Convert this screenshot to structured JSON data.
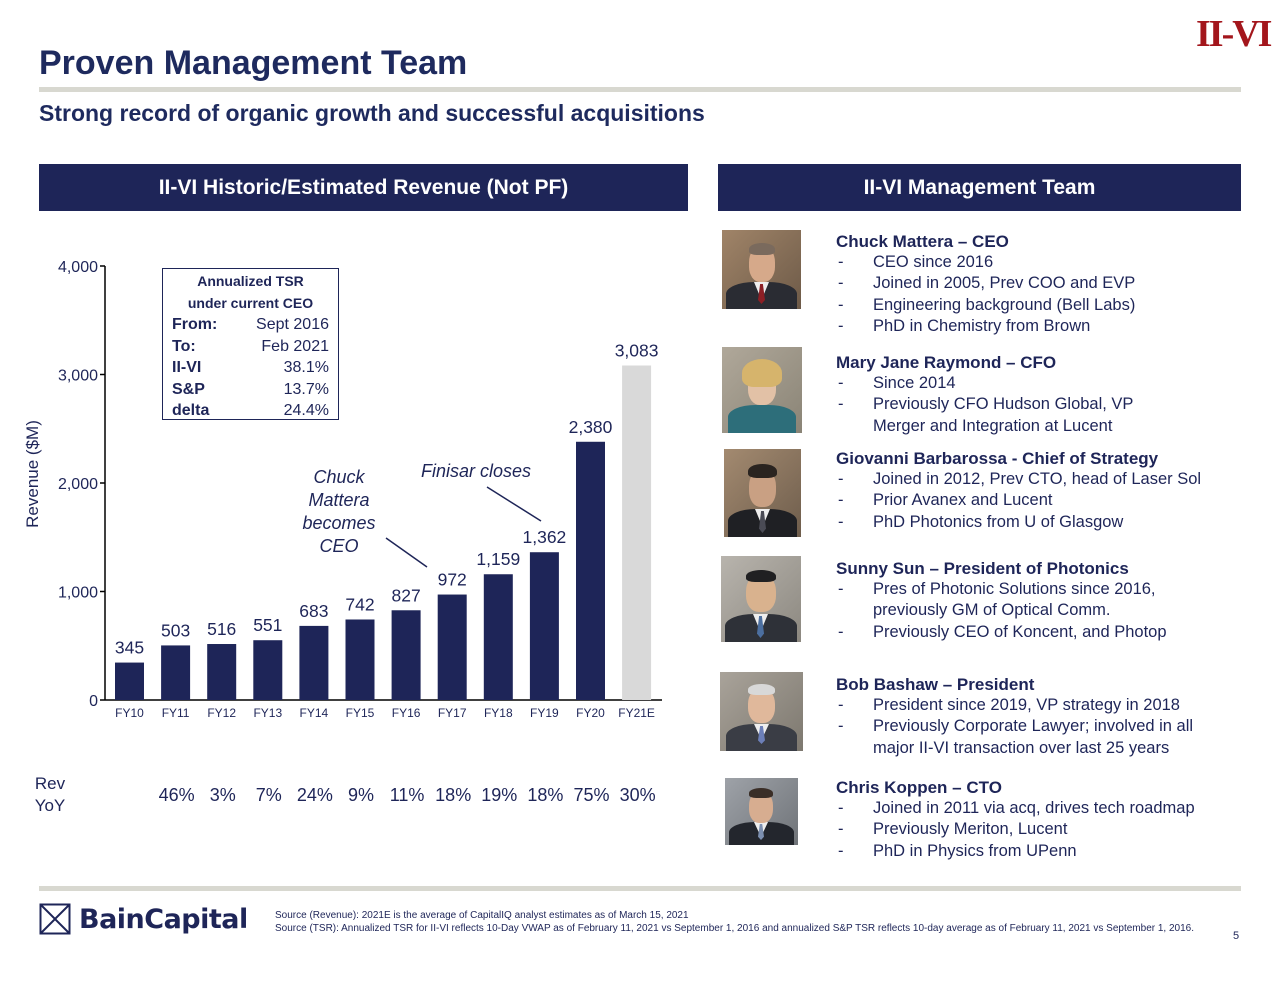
{
  "header": {
    "title": "Proven Management Team",
    "logo_text": "II-VI",
    "subtitle": "Strong record of organic growth and successful acquisitions"
  },
  "chart_panel": {
    "banner": "II-VI Historic/Estimated Revenue (Not PF)"
  },
  "team_panel": {
    "banner": "II-VI Management Team"
  },
  "tsr_box": {
    "heading_line1": "Annualized TSR",
    "heading_line2": "under current CEO",
    "rows": [
      {
        "label": "From:",
        "value": "Sept 2016"
      },
      {
        "label": "To:",
        "value": "Feb 2021"
      },
      {
        "label": "II-VI",
        "value": "38.1%"
      },
      {
        "label": "S&P",
        "value": "13.7%"
      },
      {
        "label": "delta",
        "value": "24.4%"
      }
    ]
  },
  "chart_data": {
    "type": "bar",
    "ylabel": "Revenue ($M)",
    "ylim": [
      0,
      4000
    ],
    "yticks": [
      0,
      1000,
      2000,
      3000,
      4000
    ],
    "ytick_labels": [
      "0",
      "1,000",
      "2,000",
      "3,000",
      "4,000"
    ],
    "categories": [
      "FY10",
      "FY11",
      "FY12",
      "FY13",
      "FY14",
      "FY15",
      "FY16",
      "FY17",
      "FY18",
      "FY19",
      "FY20",
      "FY21E"
    ],
    "values": [
      345,
      503,
      516,
      551,
      683,
      742,
      827,
      972,
      1159,
      1362,
      2380,
      3083
    ],
    "value_labels": [
      "345",
      "503",
      "516",
      "551",
      "683",
      "742",
      "827",
      "972",
      "1,159",
      "1,362",
      "2,380",
      "3,083"
    ],
    "estimated": [
      false,
      false,
      false,
      false,
      false,
      false,
      false,
      false,
      false,
      false,
      false,
      true
    ],
    "bar_color": "#1e2558",
    "estimate_color": "#d9d9d9",
    "yoy_label_line1": "Rev",
    "yoy_label_line2": "YoY",
    "yoy": [
      "",
      "46%",
      "3%",
      "7%",
      "24%",
      "9%",
      "11%",
      "18%",
      "19%",
      "18%",
      "75%",
      "30%"
    ],
    "annotations": [
      {
        "lines": [
          "Chuck",
          "Mattera",
          "becomes",
          "CEO"
        ],
        "points_to": "FY17"
      },
      {
        "lines": [
          "Finisar closes"
        ],
        "points_to": "FY19"
      }
    ]
  },
  "team": [
    {
      "name": "Chuck Mattera – CEO",
      "bullets": [
        "CEO since 2016",
        "Joined in 2005, Prev COO and EVP",
        "Engineering background (Bell Labs)",
        "PhD in Chemistry from Brown"
      ]
    },
    {
      "name": "Mary Jane Raymond – CFO",
      "bullets": [
        "Since 2014",
        "Previously CFO Hudson Global, VP Merger and Integration at Lucent"
      ]
    },
    {
      "name": "Giovanni Barbarossa  - Chief of Strategy",
      "bullets": [
        "Joined in 2012, Prev CTO, head of Laser Sol",
        "Prior Avanex and Lucent",
        "PhD Photonics from U of Glasgow"
      ]
    },
    {
      "name": "Sunny Sun – President of Photonics",
      "bullets": [
        "Pres of Photonic Solutions since 2016, previously GM of Optical Comm.",
        "Previously CEO of Koncent, and Photop"
      ]
    },
    {
      "name": "Bob Bashaw – President",
      "bullets": [
        "President since 2019, VP strategy in 2018",
        "Previously Corporate Lawyer; involved in all major II-VI transaction over last 25 years"
      ]
    },
    {
      "name": "Chris Koppen – CTO",
      "bullets": [
        "Joined in 2011 via acq, drives tech roadmap",
        "Previously Meriton, Lucent",
        "PhD in Physics from UPenn"
      ]
    }
  ],
  "footer": {
    "logo_text": "BainCapital",
    "source_1": "Source (Revenue): 2021E is the average of CapitalIQ analyst estimates as of March 15, 2021",
    "source_2": "Source (TSR): Annualized TSR for II-VI reflects 10-Day VWAP as of February 11, 2021 vs September 1, 2016 and annualized S&P TSR reflects 10-day average as of February 11, 2021 vs September 1, 2016.",
    "page_number": "5"
  },
  "colors": {
    "navy": "#1e2558",
    "logo_red": "#a3161c",
    "rule_gray": "#d8d8d0"
  }
}
